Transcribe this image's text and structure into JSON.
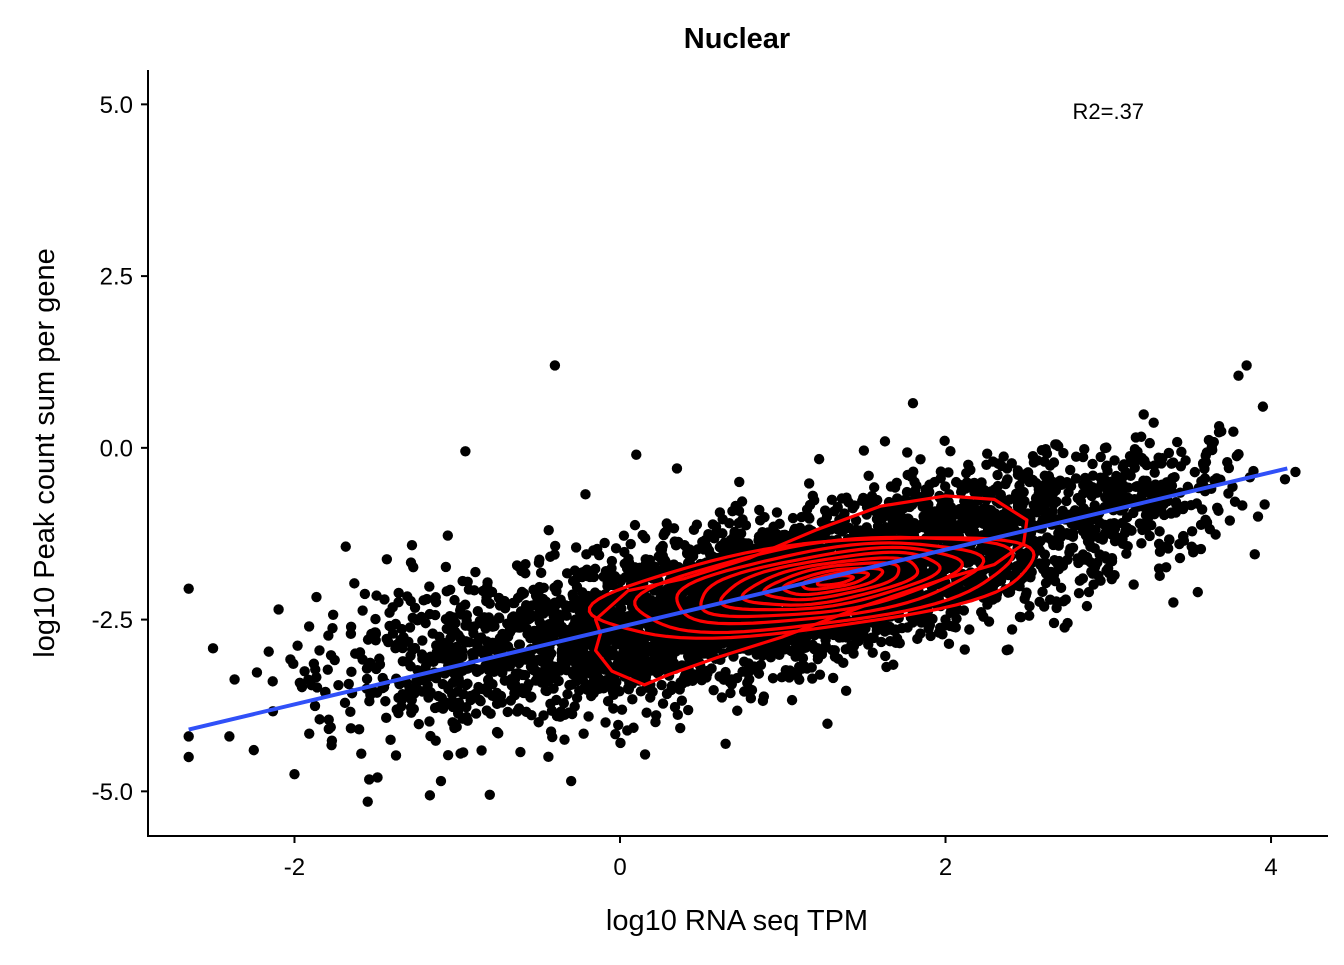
{
  "chart_data": {
    "type": "scatter",
    "title": "Nuclear",
    "xlabel": "log10 RNA seq TPM",
    "ylabel": "log10 Peak count sum per gene",
    "xlim": [
      -2.9,
      4.35
    ],
    "ylim": [
      -5.65,
      5.5
    ],
    "x_ticks": [
      -2,
      0,
      2,
      4
    ],
    "x_tick_labels": [
      "-2",
      "0",
      "2",
      "4"
    ],
    "y_ticks": [
      -5.0,
      -2.5,
      0.0,
      2.5,
      5.0
    ],
    "y_tick_labels": [
      "-5.0",
      "-2.5",
      "0.0",
      "2.5",
      "5.0"
    ],
    "grid": false,
    "legend": "none",
    "annotation": {
      "text": "R2=.37",
      "x": 3.0,
      "y": 4.9
    },
    "point_color": "#000000",
    "fit_line": {
      "color": "#3050F8",
      "x": [
        -2.65,
        4.1
      ],
      "y": [
        -4.1,
        -0.3
      ]
    },
    "contour_color": "#FF0000",
    "contours": [
      {
        "cx": 1.2,
        "cy": -2.02,
        "rx": 1.42,
        "ry": 0.6,
        "angle": 0.33
      },
      {
        "cx": 1.25,
        "cy": -1.98,
        "rx": 1.22,
        "ry": 0.56,
        "angle": 0.38
      },
      {
        "cx": 1.27,
        "cy": -1.97,
        "rx": 1.0,
        "ry": 0.47,
        "angle": 0.4
      },
      {
        "cx": 1.28,
        "cy": -1.96,
        "rx": 0.86,
        "ry": 0.39,
        "angle": 0.42
      },
      {
        "cx": 1.29,
        "cy": -1.95,
        "rx": 0.72,
        "ry": 0.32,
        "angle": 0.43
      },
      {
        "cx": 1.3,
        "cy": -1.95,
        "rx": 0.58,
        "ry": 0.26,
        "angle": 0.44
      },
      {
        "cx": 1.31,
        "cy": -1.94,
        "rx": 0.45,
        "ry": 0.2,
        "angle": 0.45
      },
      {
        "cx": 1.31,
        "cy": -1.94,
        "rx": 0.33,
        "ry": 0.14,
        "angle": 0.45
      },
      {
        "cx": 1.32,
        "cy": -1.93,
        "rx": 0.22,
        "ry": 0.09,
        "angle": 0.45
      },
      {
        "cx": 1.32,
        "cy": -1.93,
        "rx": 0.12,
        "ry": 0.05,
        "angle": 0.45
      }
    ],
    "outer_contour": {
      "x": [
        -0.15,
        0.05,
        0.4,
        0.8,
        1.2,
        1.6,
        2.0,
        2.3,
        2.5,
        2.48,
        2.3,
        2.0,
        1.5,
        1.0,
        0.6,
        0.3,
        0.15,
        -0.05,
        -0.15,
        -0.12,
        -0.15
      ],
      "y": [
        -2.5,
        -2.08,
        -1.9,
        -1.6,
        -1.2,
        -0.85,
        -0.7,
        -0.75,
        -1.05,
        -1.4,
        -1.7,
        -1.9,
        -2.3,
        -2.75,
        -3.05,
        -3.3,
        -3.45,
        -3.25,
        -2.95,
        -2.7,
        -2.5
      ]
    },
    "scatter_clusters": [
      {
        "cx": 1.0,
        "cy": -2.1,
        "sx": 0.85,
        "sy": 0.72,
        "n": 2600
      },
      {
        "cx": -0.2,
        "cy": -2.9,
        "sx": 0.8,
        "sy": 0.75,
        "n": 900
      },
      {
        "cx": 2.3,
        "cy": -1.2,
        "sx": 0.75,
        "sy": 0.7,
        "n": 900
      },
      {
        "cx": -1.2,
        "cy": -3.0,
        "sx": 0.6,
        "sy": 0.85,
        "n": 220
      },
      {
        "cx": 3.3,
        "cy": -0.7,
        "sx": 0.4,
        "sy": 0.6,
        "n": 160
      }
    ],
    "outlier_points": [
      [
        -2.65,
        -2.05
      ],
      [
        -2.65,
        -4.2
      ],
      [
        -2.65,
        -4.5
      ],
      [
        -2.4,
        -4.2
      ],
      [
        -2.25,
        -4.4
      ],
      [
        -2.0,
        -4.75
      ],
      [
        -1.55,
        -5.15
      ],
      [
        -0.4,
        1.2
      ],
      [
        0.1,
        -0.1
      ],
      [
        0.35,
        -0.3
      ],
      [
        1.8,
        0.65
      ],
      [
        3.85,
        1.2
      ],
      [
        3.8,
        1.05
      ],
      [
        3.95,
        0.6
      ],
      [
        3.92,
        -1.0
      ],
      [
        3.9,
        -1.55
      ],
      [
        3.4,
        -2.25
      ],
      [
        3.55,
        -2.1
      ],
      [
        2.75,
        -2.55
      ],
      [
        2.0,
        -2.5
      ],
      [
        4.15,
        -0.35
      ],
      [
        -0.8,
        -5.05
      ],
      [
        -1.1,
        -4.85
      ],
      [
        -0.3,
        -4.85
      ],
      [
        -0.95,
        -0.05
      ]
    ]
  }
}
